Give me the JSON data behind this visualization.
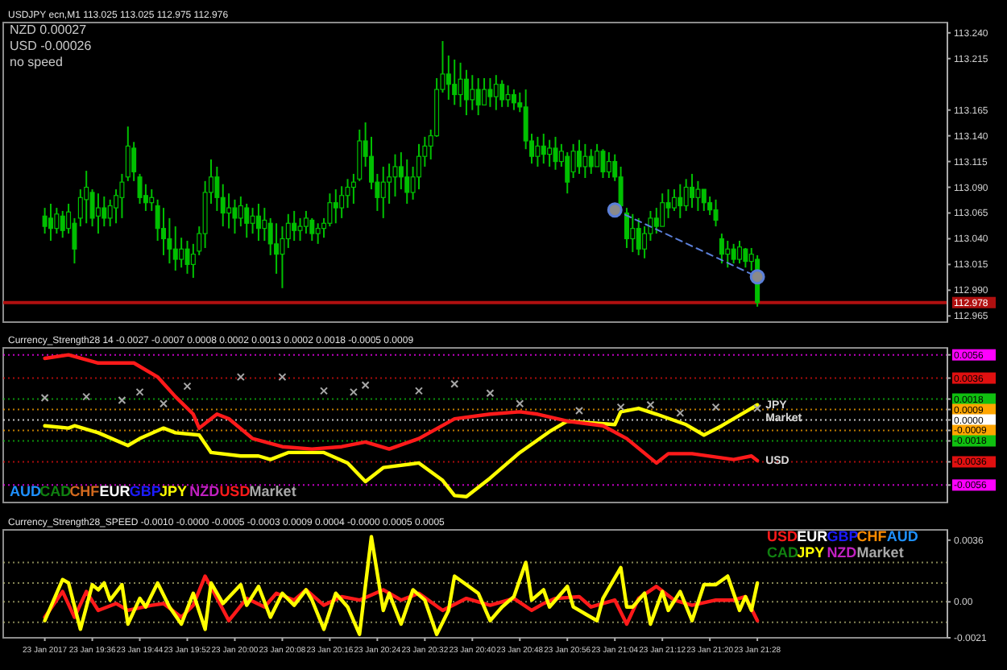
{
  "chart_data": [
    {
      "type": "candlestick",
      "title": "USDJPY ecn,M1 113.025 113.025 112.975 112.976",
      "annotations": [
        "NZD 0.00027",
        "USD -0.00026",
        "no speed"
      ],
      "color": "#00c000",
      "tick_labels": "y",
      "xlim": [
        "2017-01-23T19:21",
        "2017-01-23T22:00"
      ],
      "ylim": [
        112.959,
        113.25
      ],
      "yticks": [
        {
          "value": 113.24,
          "label": "113.240"
        },
        113.215,
        113.165,
        {
          "value": 113.14,
          "label": "113.140"
        },
        113.115,
        {
          "value": 113.09,
          "label": "113.090"
        },
        113.065,
        {
          "value": 113.04,
          "label": "113.040"
        },
        113.015,
        {
          "value": 112.99,
          "label": "112.990"
        },
        112.965
      ],
      "ref_lines": [
        {
          "axis": "y",
          "value": 112.978,
          "label": "112.978",
          "color": "#b01010",
          "line_style": "solid"
        }
      ],
      "x": [
        "2017-01-23T19:28",
        "2017-01-23T19:29",
        "2017-01-23T19:30",
        "2017-01-23T19:31",
        "2017-01-23T19:32",
        "2017-01-23T19:33",
        "2017-01-23T19:34",
        "2017-01-23T19:35",
        "2017-01-23T19:36",
        "2017-01-23T19:37",
        "2017-01-23T19:38",
        "2017-01-23T19:39",
        "2017-01-23T19:40",
        "2017-01-23T19:41",
        "2017-01-23T19:42",
        "2017-01-23T19:43",
        "2017-01-23T19:44",
        "2017-01-23T19:45",
        "2017-01-23T19:46",
        "2017-01-23T19:47",
        "2017-01-23T19:48",
        "2017-01-23T19:49",
        "2017-01-23T19:50",
        "2017-01-23T19:51",
        "2017-01-23T19:52",
        "2017-01-23T19:53",
        "2017-01-23T19:54",
        "2017-01-23T19:55",
        "2017-01-23T19:56",
        "2017-01-23T19:57",
        "2017-01-23T19:58",
        "2017-01-23T19:59",
        "2017-01-23T20:00",
        "2017-01-23T20:01",
        "2017-01-23T20:02",
        "2017-01-23T20:03",
        "2017-01-23T20:04",
        "2017-01-23T20:05",
        "2017-01-23T20:06",
        "2017-01-23T20:07",
        "2017-01-23T20:08",
        "2017-01-23T20:09",
        "2017-01-23T20:10",
        "2017-01-23T20:11",
        "2017-01-23T20:12",
        "2017-01-23T20:13",
        "2017-01-23T20:14",
        "2017-01-23T20:15",
        "2017-01-23T20:16",
        "2017-01-23T20:17",
        "2017-01-23T20:18",
        "2017-01-23T20:19",
        "2017-01-23T20:20",
        "2017-01-23T20:21",
        "2017-01-23T20:22",
        "2017-01-23T20:23",
        "2017-01-23T20:24",
        "2017-01-23T20:25",
        "2017-01-23T20:26",
        "2017-01-23T20:27",
        "2017-01-23T20:28",
        "2017-01-23T20:29",
        "2017-01-23T20:30",
        "2017-01-23T20:31",
        "2017-01-23T20:32",
        "2017-01-23T20:33",
        "2017-01-23T20:34",
        "2017-01-23T20:35",
        "2017-01-23T20:36",
        "2017-01-23T20:37",
        "2017-01-23T20:38",
        "2017-01-23T20:39",
        "2017-01-23T20:40",
        "2017-01-23T20:41",
        "2017-01-23T20:42",
        "2017-01-23T20:43",
        "2017-01-23T20:44",
        "2017-01-23T20:45",
        "2017-01-23T20:46",
        "2017-01-23T20:47",
        "2017-01-23T20:48",
        "2017-01-23T20:49",
        "2017-01-23T20:50",
        "2017-01-23T20:51",
        "2017-01-23T20:52",
        "2017-01-23T20:53",
        "2017-01-23T20:54",
        "2017-01-23T20:55",
        "2017-01-23T20:56",
        "2017-01-23T20:57",
        "2017-01-23T20:58",
        "2017-01-23T20:59",
        "2017-01-23T21:00",
        "2017-01-23T21:01",
        "2017-01-23T21:02",
        "2017-01-23T21:03",
        "2017-01-23T21:04",
        "2017-01-23T21:05",
        "2017-01-23T21:06",
        "2017-01-23T21:07",
        "2017-01-23T21:08",
        "2017-01-23T21:09",
        "2017-01-23T21:10",
        "2017-01-23T21:11",
        "2017-01-23T21:12",
        "2017-01-23T21:13",
        "2017-01-23T21:14",
        "2017-01-23T21:15",
        "2017-01-23T21:16",
        "2017-01-23T21:17",
        "2017-01-23T21:18",
        "2017-01-23T21:19",
        "2017-01-23T21:20",
        "2017-01-23T21:21",
        "2017-01-23T21:22",
        "2017-01-23T21:23",
        "2017-01-23T21:24",
        "2017-01-23T21:25",
        "2017-01-23T21:26",
        "2017-01-23T21:27",
        "2017-01-23T21:28"
      ],
      "ohlc": [
        [
          113.062,
          113.07,
          113.045,
          113.052
        ],
        [
          113.06,
          113.074,
          113.038,
          113.05
        ],
        [
          113.05,
          113.07,
          113.045,
          113.064
        ],
        [
          113.062,
          113.067,
          113.041,
          113.048
        ],
        [
          113.05,
          113.074,
          113.045,
          113.066
        ],
        [
          113.055,
          113.06,
          113.016,
          113.03
        ],
        [
          113.06,
          113.088,
          113.052,
          113.08
        ],
        [
          113.078,
          113.106,
          113.055,
          113.09
        ],
        [
          113.085,
          113.088,
          113.052,
          113.06
        ],
        [
          113.062,
          113.084,
          113.045,
          113.07
        ],
        [
          113.07,
          113.081,
          113.052,
          113.06
        ],
        [
          113.06,
          113.078,
          113.052,
          113.072
        ],
        [
          113.07,
          113.088,
          113.055,
          113.082
        ],
        [
          113.08,
          113.103,
          113.06,
          113.095
        ],
        [
          113.1,
          113.149,
          113.096,
          113.13
        ],
        [
          113.128,
          113.134,
          113.096,
          113.105
        ],
        [
          113.1,
          113.103,
          113.074,
          113.08
        ],
        [
          113.082,
          113.093,
          113.067,
          113.075
        ],
        [
          113.075,
          113.088,
          113.067,
          113.08
        ],
        [
          113.072,
          113.078,
          113.038,
          113.05
        ],
        [
          113.05,
          113.07,
          113.024,
          113.04
        ],
        [
          113.04,
          113.06,
          113.016,
          113.03
        ],
        [
          113.03,
          113.052,
          113.009,
          113.02
        ],
        [
          113.02,
          113.041,
          113.012,
          113.03
        ],
        [
          113.03,
          113.038,
          113.006,
          113.015
        ],
        [
          113.015,
          113.035,
          113.002,
          113.025
        ],
        [
          113.028,
          113.052,
          113.024,
          113.045
        ],
        [
          113.045,
          113.096,
          113.031,
          113.085
        ],
        [
          113.085,
          113.117,
          113.074,
          113.1
        ],
        [
          113.1,
          113.11,
          113.067,
          113.08
        ],
        [
          113.08,
          113.093,
          113.052,
          113.065
        ],
        [
          113.065,
          113.084,
          113.05,
          113.07
        ],
        [
          113.07,
          113.078,
          113.045,
          113.06
        ],
        [
          113.06,
          113.081,
          113.052,
          113.072
        ],
        [
          113.07,
          113.074,
          113.041,
          113.055
        ],
        [
          113.055,
          113.07,
          113.045,
          113.062
        ],
        [
          113.062,
          113.074,
          113.038,
          113.05
        ],
        [
          113.05,
          113.07,
          113.038,
          113.058
        ],
        [
          113.055,
          113.06,
          113.024,
          113.035
        ],
        [
          113.035,
          113.055,
          113.006,
          113.025
        ],
        [
          113.025,
          113.052,
          112.992,
          113.04
        ],
        [
          113.04,
          113.064,
          113.031,
          113.055
        ],
        [
          113.055,
          113.067,
          113.038,
          113.048
        ],
        [
          113.048,
          113.06,
          113.038,
          113.052
        ],
        [
          113.052,
          113.067,
          113.045,
          113.06
        ],
        [
          113.058,
          113.06,
          113.038,
          113.045
        ],
        [
          113.045,
          113.055,
          113.035,
          113.05
        ],
        [
          113.05,
          113.06,
          113.041,
          113.055
        ],
        [
          113.055,
          113.084,
          113.052,
          113.075
        ],
        [
          113.075,
          113.088,
          113.055,
          113.07
        ],
        [
          113.07,
          113.091,
          113.06,
          113.082
        ],
        [
          113.082,
          113.098,
          113.07,
          113.09
        ],
        [
          113.09,
          113.103,
          113.074,
          113.095
        ],
        [
          113.098,
          113.146,
          113.096,
          113.135
        ],
        [
          113.135,
          113.153,
          113.11,
          113.12
        ],
        [
          113.12,
          113.139,
          113.088,
          113.095
        ],
        [
          113.095,
          113.103,
          113.067,
          113.08
        ],
        [
          113.08,
          113.11,
          113.06,
          113.095
        ],
        [
          113.095,
          113.113,
          113.074,
          113.1
        ],
        [
          113.1,
          113.122,
          113.081,
          113.11
        ],
        [
          113.11,
          113.124,
          113.088,
          113.1
        ],
        [
          113.1,
          113.117,
          113.074,
          113.085
        ],
        [
          113.085,
          113.11,
          113.078,
          113.1
        ],
        [
          113.1,
          113.132,
          113.088,
          113.12
        ],
        [
          113.12,
          113.139,
          113.11,
          113.13
        ],
        [
          113.13,
          113.146,
          113.117,
          113.14
        ],
        [
          113.14,
          113.196,
          113.139,
          113.185
        ],
        [
          113.185,
          113.232,
          113.182,
          113.2
        ],
        [
          113.2,
          113.218,
          113.175,
          113.19
        ],
        [
          113.19,
          113.214,
          113.17,
          113.18
        ],
        [
          113.18,
          113.211,
          113.168,
          113.195
        ],
        [
          113.195,
          113.204,
          113.16,
          113.175
        ],
        [
          113.175,
          113.199,
          113.165,
          113.185
        ],
        [
          113.185,
          113.196,
          113.16,
          113.17
        ],
        [
          113.17,
          113.196,
          113.17,
          113.185
        ],
        [
          113.185,
          113.196,
          113.168,
          113.178
        ],
        [
          113.178,
          113.199,
          113.165,
          113.19
        ],
        [
          113.19,
          113.194,
          113.168,
          113.175
        ],
        [
          113.175,
          113.189,
          113.168,
          113.18
        ],
        [
          113.18,
          113.185,
          113.165,
          113.172
        ],
        [
          113.172,
          113.182,
          113.163,
          113.168
        ],
        [
          113.168,
          113.185,
          113.127,
          113.135
        ],
        [
          113.135,
          113.142,
          113.113,
          113.12
        ],
        [
          113.12,
          113.139,
          113.11,
          113.13
        ],
        [
          113.13,
          113.142,
          113.113,
          113.122
        ],
        [
          113.122,
          113.136,
          113.11,
          113.128
        ],
        [
          113.128,
          113.139,
          113.107,
          113.115
        ],
        [
          113.115,
          113.132,
          113.11,
          113.125
        ],
        [
          113.12,
          113.124,
          113.084,
          113.095
        ],
        [
          113.105,
          113.132,
          113.099,
          113.125
        ],
        [
          113.125,
          113.136,
          113.103,
          113.11
        ],
        [
          113.11,
          113.132,
          113.099,
          113.12
        ],
        [
          113.12,
          113.127,
          113.103,
          113.11
        ],
        [
          113.11,
          113.132,
          113.11,
          113.125
        ],
        [
          113.125,
          113.127,
          113.099,
          113.105
        ],
        [
          113.105,
          113.124,
          113.099,
          113.115
        ],
        [
          113.115,
          113.122,
          113.096,
          113.1
        ],
        [
          113.1,
          113.11,
          113.067,
          113.072
        ],
        [
          113.065,
          113.07,
          113.031,
          113.04
        ],
        [
          113.04,
          113.064,
          113.027,
          113.05
        ],
        [
          113.05,
          113.06,
          113.024,
          113.03
        ],
        [
          113.03,
          113.052,
          113.021,
          113.045
        ],
        [
          113.045,
          113.067,
          113.038,
          113.06
        ],
        [
          113.06,
          113.07,
          113.045,
          113.052
        ],
        [
          113.052,
          113.084,
          113.052,
          113.075
        ],
        [
          113.075,
          113.088,
          113.06,
          113.07
        ],
        [
          113.07,
          113.088,
          113.067,
          113.08
        ],
        [
          113.08,
          113.093,
          113.06,
          113.072
        ],
        [
          113.072,
          113.098,
          113.067,
          113.09
        ],
        [
          113.09,
          113.103,
          113.07,
          113.08
        ],
        [
          113.08,
          113.096,
          113.067,
          113.088
        ],
        [
          113.088,
          113.088,
          113.067,
          113.075
        ],
        [
          113.075,
          113.081,
          113.063,
          113.068
        ],
        [
          113.068,
          113.078,
          113.052,
          113.058
        ],
        [
          113.04,
          113.045,
          113.016,
          113.025
        ],
        [
          113.025,
          113.038,
          113.012,
          113.03
        ],
        [
          113.03,
          113.035,
          113.016,
          113.02
        ],
        [
          113.02,
          113.038,
          113.016,
          113.032
        ],
        [
          113.03,
          113.031,
          113.012,
          113.018
        ],
        [
          113.018,
          113.031,
          113.009,
          113.025
        ],
        [
          113.02,
          113.024,
          112.974,
          112.978
        ]
      ],
      "series": [
        {
          "type": "line",
          "color": "#5b7fd8",
          "line_style": "dashed",
          "marker": "circle",
          "x": [
            "2017-01-23T21:04",
            "2017-01-23T21:28"
          ],
          "values": [
            113.068,
            113.003
          ]
        }
      ]
    },
    {
      "type": "line",
      "title": "Currency_Strength28 14 -0.0027 -0.0007 0.0008 0.0002 0.0013 0.0002 0.0018 -0.0005 0.0009",
      "tick_labels": "y",
      "legend": "bottom left",
      "xlim": [
        "2017-01-23T19:21",
        "2017-01-23T22:00"
      ],
      "ylim": [
        -0.0071,
        0.0062
      ],
      "yticks": [
        0.0056,
        0.0036,
        0.0018,
        0.0009,
        {
          "value": 0,
          "label": "0.0000"
        },
        -0.0009,
        -0.0018,
        -0.0036,
        -0.0056
      ],
      "ref_lines": [
        {
          "axis": "y",
          "value": 0.0056,
          "color": "#ff00ff"
        },
        {
          "axis": "y",
          "value": 0.0036,
          "color": "#e01010"
        },
        {
          "axis": "y",
          "value": 0.0018,
          "color": "#10c010"
        },
        {
          "axis": "y",
          "value": 0.0009,
          "color": "#ffa500"
        },
        {
          "axis": "y",
          "value": 0,
          "color": "#ffffff"
        },
        {
          "axis": "y",
          "value": -0.0009,
          "color": "#ffa500"
        },
        {
          "axis": "y",
          "value": -0.0018,
          "color": "#10c010"
        },
        {
          "axis": "y",
          "value": -0.0036,
          "color": "#e01010"
        },
        {
          "axis": "y",
          "value": -0.0056,
          "color": "#ff00ff"
        }
      ],
      "annotations": [
        {
          "text": "JPY",
          "x": "2017-01-23T21:28",
          "y": 0.0013
        },
        {
          "text": "Market",
          "x": "2017-01-23T21:28",
          "y": 0.001
        },
        {
          "text": "USD",
          "x": "2017-01-23T21:28",
          "y": -0.0035
        }
      ],
      "series": [
        {
          "name": "AUD",
          "color": "#1e90ff"
        },
        {
          "name": "CAD",
          "color": "#108010"
        },
        {
          "name": "CHF",
          "color": "#d2691e"
        },
        {
          "name": "EUR",
          "color": "#ffffff"
        },
        {
          "name": "GBP",
          "color": "#1c1cff"
        },
        {
          "name": "JPY",
          "color": "#ffff00",
          "x": [
            "2017-01-23T19:28",
            "2017-01-23T19:32",
            "2017-01-23T19:33",
            "2017-01-23T19:37",
            "2017-01-23T19:42",
            "2017-01-23T19:44",
            "2017-01-23T19:48",
            "2017-01-23T19:50",
            "2017-01-23T19:54",
            "2017-01-23T19:56",
            "2017-01-23T20:01",
            "2017-01-23T20:04",
            "2017-01-23T20:06",
            "2017-01-23T20:09",
            "2017-01-23T20:15",
            "2017-01-23T20:19",
            "2017-01-23T20:22",
            "2017-01-23T20:25",
            "2017-01-23T20:31",
            "2017-01-23T20:35",
            "2017-01-23T20:37",
            "2017-01-23T20:39",
            "2017-01-23T20:43",
            "2017-01-23T20:48",
            "2017-01-23T20:53",
            "2017-01-23T20:56",
            "2017-01-23T21:04",
            "2017-01-23T21:05",
            "2017-01-23T21:08",
            "2017-01-23T21:11",
            "2017-01-23T21:16",
            "2017-01-23T21:19",
            "2017-01-23T21:22",
            "2017-01-23T21:26",
            "2017-01-23T21:28"
          ],
          "values": [
            -0.0005,
            -0.0007,
            -0.0005,
            -0.0011,
            -0.0022,
            -0.0016,
            -0.0007,
            -0.0011,
            -0.0013,
            -0.0028,
            -0.0031,
            -0.0031,
            -0.0034,
            -0.0028,
            -0.0028,
            -0.0037,
            -0.0053,
            -0.0041,
            -0.0037,
            -0.0052,
            -0.0065,
            -0.0066,
            -0.005,
            -0.0028,
            -0.001,
            -0.0001,
            -0.0004,
            0.0007,
            0.001,
            0.0005,
            -0.0004,
            -0.0013,
            -0.0005,
            0.0007,
            0.0013
          ]
        },
        {
          "name": "NZD",
          "color": "#c020c0"
        },
        {
          "name": "USD",
          "color": "#ff1a1a",
          "x": [
            "2017-01-23T19:28",
            "2017-01-23T19:32",
            "2017-01-23T19:37",
            "2017-01-23T19:43",
            "2017-01-23T19:47",
            "2017-01-23T19:50",
            "2017-01-23T19:53",
            "2017-01-23T19:54",
            "2017-01-23T19:56",
            "2017-01-23T19:57",
            "2017-01-23T19:59",
            "2017-01-23T20:03",
            "2017-01-23T20:08",
            "2017-01-23T20:13",
            "2017-01-23T20:18",
            "2017-01-23T20:22",
            "2017-01-23T20:26",
            "2017-01-23T20:31",
            "2017-01-23T20:37",
            "2017-01-23T20:43",
            "2017-01-23T20:48",
            "2017-01-23T20:51",
            "2017-01-23T20:56",
            "2017-01-23T21:02",
            "2017-01-23T21:06",
            "2017-01-23T21:11",
            "2017-01-23T21:13",
            "2017-01-23T21:17",
            "2017-01-23T21:24",
            "2017-01-23T21:27",
            "2017-01-23T21:28"
          ],
          "values": [
            0.0053,
            0.0056,
            0.0049,
            0.0049,
            0.0037,
            0.002,
            0.0005,
            -0.0007,
            0.0001,
            0.0005,
            0.0001,
            -0.0016,
            -0.0023,
            -0.0025,
            -0.0023,
            -0.0019,
            -0.0025,
            -0.0016,
            0.0001,
            0.0005,
            0.0007,
            0.0005,
            -0.0001,
            -0.0005,
            -0.0016,
            -0.0037,
            -0.0029,
            -0.0029,
            -0.0034,
            -0.0031,
            -0.0035
          ]
        },
        {
          "name": "Market",
          "type": "scatter",
          "marker": "cross",
          "color": "#a8a8a8",
          "x": [
            "2017-01-23T19:28",
            "2017-01-23T19:35",
            "2017-01-23T19:41",
            "2017-01-23T19:44",
            "2017-01-23T19:48",
            "2017-01-23T19:52",
            "2017-01-23T20:01",
            "2017-01-23T20:08",
            "2017-01-23T20:15",
            "2017-01-23T20:20",
            "2017-01-23T20:22",
            "2017-01-23T20:31",
            "2017-01-23T20:37",
            "2017-01-23T20:43",
            "2017-01-23T20:48",
            "2017-01-23T20:58",
            "2017-01-23T21:05",
            "2017-01-23T21:10",
            "2017-01-23T21:15",
            "2017-01-23T21:21",
            "2017-01-23T21:28"
          ],
          "values": [
            0.0019,
            0.002,
            0.0017,
            0.0024,
            0.0014,
            0.0029,
            0.0037,
            0.0037,
            0.0025,
            0.0024,
            0.003,
            0.0025,
            0.0031,
            0.0023,
            0.0014,
            0.0008,
            0.0011,
            0.0013,
            0.0006,
            0.0011,
            0.001
          ]
        }
      ]
    },
    {
      "type": "line",
      "title": "Currency_Strength28_SPEED -0.0010 -0.0000 -0.0005 -0.0003 0.0009 0.0004 -0.0000 0.0005 0.0005",
      "legend": "top right",
      "xlim": [
        "2017-01-23T19:21",
        "2017-01-23T22:00"
      ],
      "xticks": [
        {
          "value": "2017-01-23T19:28",
          "label": "23 Jan 2017"
        },
        {
          "value": "2017-01-23T19:36",
          "label": "23 Jan 19:36"
        },
        {
          "value": "2017-01-23T19:44",
          "label": "23 Jan 19:44"
        },
        {
          "value": "2017-01-23T19:52",
          "label": "23 Jan 19:52"
        },
        {
          "value": "2017-01-23T20:00",
          "label": "23 Jan 20:00"
        },
        {
          "value": "2017-01-23T20:08",
          "label": "23 Jan 20:08"
        },
        {
          "value": "2017-01-23T20:16",
          "label": "23 Jan 20:16"
        },
        {
          "value": "2017-01-23T20:24",
          "label": "23 Jan 20:24"
        },
        {
          "value": "2017-01-23T20:32",
          "label": "23 Jan 20:32"
        },
        {
          "value": "2017-01-23T20:40",
          "label": "23 Jan 20:40"
        },
        {
          "value": "2017-01-23T20:48",
          "label": "23 Jan 20:48"
        },
        {
          "value": "2017-01-23T20:56",
          "label": "23 Jan 20:56"
        },
        {
          "value": "2017-01-23T21:04",
          "label": "23 Jan 21:04"
        },
        {
          "value": "2017-01-23T21:12",
          "label": "23 Jan 21:12"
        },
        {
          "value": "2017-01-23T21:20",
          "label": "23 Jan 21:20"
        },
        {
          "value": "2017-01-23T21:28",
          "label": "23 Jan 21:28"
        }
      ],
      "ylim": [
        -0.0021,
        0.0042
      ],
      "yticks": [
        0.0036,
        {
          "value": 0,
          "label": "0.00"
        },
        -0.0021
      ],
      "ref_lines": [
        {
          "axis": "y",
          "value": 0.0023,
          "color": "#b0b070"
        },
        {
          "axis": "y",
          "value": 0.0011,
          "color": "#b0b070"
        },
        {
          "axis": "y",
          "value": 0,
          "color": "#b0b070"
        },
        {
          "axis": "y",
          "value": -0.0012,
          "color": "#b0b070"
        }
      ],
      "series": [
        {
          "name": "USD",
          "color": "#ff1a1a",
          "x": [
            "2017-01-23T19:28",
            "2017-01-23T19:31",
            "2017-01-23T19:33",
            "2017-01-23T19:35",
            "2017-01-23T19:37",
            "2017-01-23T19:40",
            "2017-01-23T19:42",
            "2017-01-23T19:46",
            "2017-01-23T19:48",
            "2017-01-23T19:51",
            "2017-01-23T19:53",
            "2017-01-23T19:55",
            "2017-01-23T19:57",
            "2017-01-23T19:59",
            "2017-01-23T20:02",
            "2017-01-23T20:05",
            "2017-01-23T20:07",
            "2017-01-23T20:10",
            "2017-01-23T20:12",
            "2017-01-23T20:15",
            "2017-01-23T20:18",
            "2017-01-23T20:21",
            "2017-01-23T20:25",
            "2017-01-23T20:28",
            "2017-01-23T20:31",
            "2017-01-23T20:35",
            "2017-01-23T20:39",
            "2017-01-23T20:43",
            "2017-01-23T20:47",
            "2017-01-23T20:50",
            "2017-01-23T20:52",
            "2017-01-23T20:54",
            "2017-01-23T20:58",
            "2017-01-23T21:00",
            "2017-01-23T21:04",
            "2017-01-23T21:06",
            "2017-01-23T21:08",
            "2017-01-23T21:11",
            "2017-01-23T21:14",
            "2017-01-23T21:17",
            "2017-01-23T21:21",
            "2017-01-23T21:24",
            "2017-01-23T21:26",
            "2017-01-23T21:28"
          ],
          "values": [
            -0.0009,
            0.0006,
            -0.0009,
            0.0006,
            -0.0005,
            -0.0001,
            -0.0005,
            -0.0002,
            -0.0001,
            -0.0009,
            -0.0002,
            0.0015,
            0.0002,
            -0.0011,
            0.0002,
            -0.0003,
            0.0005,
            0.0001,
            0.0007,
            -0.0002,
            0.0003,
            0.0001,
            0.0007,
            0.0001,
            0.0005,
            -0.0005,
            0.0002,
            -0.0002,
            0.0002,
            -0.0005,
            -0.0001,
            0.0002,
            0.0003,
            -0.0003,
            0.0001,
            -0.0013,
            0.0002,
            0.0009,
            0.0001,
            -0.0002,
            0.0001,
            0.0001,
            0.0003,
            -0.0011
          ]
        },
        {
          "name": "EUR",
          "color": "#ffffff"
        },
        {
          "name": "GBP",
          "color": "#1c1cff"
        },
        {
          "name": "CHF",
          "color": "#ff8c00"
        },
        {
          "name": "AUD",
          "color": "#1e90ff"
        },
        {
          "name": "CAD",
          "color": "#108010"
        },
        {
          "name": "JPY",
          "color": "#ffff00",
          "x": [
            "2017-01-23T19:28",
            "2017-01-23T19:31",
            "2017-01-23T19:32",
            "2017-01-23T19:34",
            "2017-01-23T19:36",
            "2017-01-23T19:37",
            "2017-01-23T19:38",
            "2017-01-23T19:39",
            "2017-01-23T19:41",
            "2017-01-23T19:42",
            "2017-01-23T19:44",
            "2017-01-23T19:45",
            "2017-01-23T19:47",
            "2017-01-23T19:49",
            "2017-01-23T19:51",
            "2017-01-23T19:53",
            "2017-01-23T19:55",
            "2017-01-23T19:56",
            "2017-01-23T19:58",
            "2017-01-23T20:01",
            "2017-01-23T20:02",
            "2017-01-23T20:04",
            "2017-01-23T20:06",
            "2017-01-23T20:08",
            "2017-01-23T20:10",
            "2017-01-23T20:12",
            "2017-01-23T20:13",
            "2017-01-23T20:15",
            "2017-01-23T20:17",
            "2017-01-23T20:19",
            "2017-01-23T20:21",
            "2017-01-23T20:23",
            "2017-01-23T20:25",
            "2017-01-23T20:26",
            "2017-01-23T20:28",
            "2017-01-23T20:30",
            "2017-01-23T20:32",
            "2017-01-23T20:34",
            "2017-01-23T20:36",
            "2017-01-23T20:37",
            "2017-01-23T20:39",
            "2017-01-23T20:41",
            "2017-01-23T20:43",
            "2017-01-23T20:45",
            "2017-01-23T20:47",
            "2017-01-23T20:49",
            "2017-01-23T20:50",
            "2017-01-23T20:52",
            "2017-01-23T20:53",
            "2017-01-23T20:56",
            "2017-01-23T20:57",
            "2017-01-23T20:59",
            "2017-01-23T21:01",
            "2017-01-23T21:02",
            "2017-01-23T21:05",
            "2017-01-23T21:06",
            "2017-01-23T21:07",
            "2017-01-23T21:09",
            "2017-01-23T21:10",
            "2017-01-23T21:12",
            "2017-01-23T21:13",
            "2017-01-23T21:15",
            "2017-01-23T21:17",
            "2017-01-23T21:19",
            "2017-01-23T21:21",
            "2017-01-23T21:23",
            "2017-01-23T21:25",
            "2017-01-23T21:26",
            "2017-01-23T21:27",
            "2017-01-23T21:28"
          ],
          "values": [
            -0.0011,
            0.0013,
            0.0011,
            -0.0016,
            0.001,
            0.0007,
            0.0011,
            0.0001,
            0.001,
            -0.0013,
            0.0002,
            -0.0003,
            0.0011,
            -0.0003,
            -0.0013,
            0.0005,
            -0.0016,
            0.0011,
            -0.0001,
            0.001,
            -0.0002,
            0.0009,
            -0.0009,
            0.0005,
            -0.0002,
            0.0007,
            0.0001,
            -0.0016,
            0.0005,
            -0.0003,
            -0.0019,
            0.0038,
            -0.0005,
            0.0005,
            -0.0013,
            0.0007,
            0.0001,
            -0.0019,
            -0.0005,
            0.0015,
            0.001,
            0.0005,
            -0.0011,
            -0.0003,
            0.0003,
            0.0023,
            0.0001,
            0.0007,
            -0.0003,
            0.0009,
            -0.0003,
            -0.0007,
            -0.0011,
            0.0002,
            0.002,
            -0.0003,
            -0.0003,
            0.0005,
            -0.0013,
            0.0006,
            -0.0005,
            0.0006,
            -0.0011,
            0.001,
            0.001,
            0.0015,
            -0.0005,
            0.0003,
            -0.0005,
            0.0011
          ]
        },
        {
          "name": "NZD",
          "color": "#c020c0"
        },
        {
          "name": "Market",
          "color": "#a8a8a8"
        }
      ]
    }
  ]
}
